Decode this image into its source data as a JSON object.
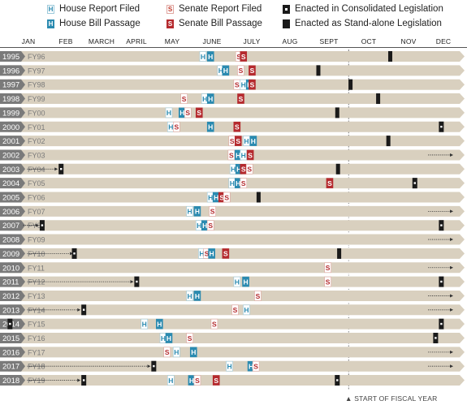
{
  "legend": {
    "house_report": "House Report Filed",
    "house_bill": "House Bill Passage",
    "senate_report": "Senate Report Filed",
    "senate_bill": "Senate Bill Passage",
    "consolidated": "Enacted in Consolidated Legislation",
    "standalone": "Enacted as Stand-alone Legislation",
    "house_glyph": "H",
    "senate_glyph": "S"
  },
  "colors": {
    "row_bg": "#d9d0bf",
    "house": "#2a8ab0",
    "senate": "#b52a2e",
    "black": "#1a1a1a",
    "year_tab": "#7a7a7a"
  },
  "months": [
    "JAN",
    "FEB",
    "MARCH",
    "APRIL",
    "MAY",
    "JUNE",
    "JULY",
    "AUG",
    "SEPT",
    "OCT",
    "NOV",
    "DEC"
  ],
  "footnote": "START OF FISCAL YEAR",
  "chart_data": {
    "type": "timeline",
    "rows": [
      {
        "year": "1995",
        "fy": "FY96",
        "strike": false,
        "events": [
          {
            "t": "HR",
            "m": 6.15
          },
          {
            "t": "HB",
            "m": 6.35
          },
          {
            "t": "SR",
            "m": 7.1
          },
          {
            "t": "SB",
            "m": 7.22
          },
          {
            "t": "EA",
            "m": 11.1
          }
        ]
      },
      {
        "year": "1996",
        "fy": "FY97",
        "strike": false,
        "events": [
          {
            "t": "HR",
            "m": 6.62
          },
          {
            "t": "HB",
            "m": 6.75
          },
          {
            "t": "SR",
            "m": 7.15
          },
          {
            "t": "SB",
            "m": 7.45
          },
          {
            "t": "EA",
            "m": 9.2
          }
        ]
      },
      {
        "year": "1997",
        "fy": "FY98",
        "strike": false,
        "events": [
          {
            "t": "SR",
            "m": 7.05
          },
          {
            "t": "HR",
            "m": 7.22
          },
          {
            "t": "HB",
            "m": 7.38
          },
          {
            "t": "SB",
            "m": 7.45
          },
          {
            "t": "EA",
            "m": 10.05
          }
        ]
      },
      {
        "year": "1998",
        "fy": "FY99",
        "strike": false,
        "events": [
          {
            "t": "SR",
            "m": 5.65
          },
          {
            "t": "HR",
            "m": 6.2
          },
          {
            "t": "HB",
            "m": 6.35
          },
          {
            "t": "SB",
            "m": 7.15
          },
          {
            "t": "EA",
            "m": 10.78
          }
        ]
      },
      {
        "year": "1999",
        "fy": "FY00",
        "strike": false,
        "events": [
          {
            "t": "HR",
            "m": 5.25
          },
          {
            "t": "HB",
            "m": 5.6
          },
          {
            "t": "SR",
            "m": 5.75
          },
          {
            "t": "SB",
            "m": 6.05
          },
          {
            "t": "EA",
            "m": 9.7
          }
        ]
      },
      {
        "year": "2000",
        "fy": "FY01",
        "strike": false,
        "events": [
          {
            "t": "HR",
            "m": 5.3
          },
          {
            "t": "SR",
            "m": 5.45
          },
          {
            "t": "HB",
            "m": 6.35
          },
          {
            "t": "SB",
            "m": 7.05
          },
          {
            "t": "EC",
            "m": 12.45
          }
        ]
      },
      {
        "year": "2001",
        "fy": "FY02",
        "strike": false,
        "events": [
          {
            "t": "SR",
            "m": 6.92
          },
          {
            "t": "SB",
            "m": 7.08
          },
          {
            "t": "HR",
            "m": 7.3
          },
          {
            "t": "HB",
            "m": 7.48
          },
          {
            "t": "EA",
            "m": 11.05
          }
        ]
      },
      {
        "year": "2002",
        "fy": "FY03",
        "strike": false,
        "events": [
          {
            "t": "SR",
            "m": 6.9
          },
          {
            "t": "HB",
            "m": 7.08
          },
          {
            "t": "HR",
            "m": 7.22
          },
          {
            "t": "SB",
            "m": 7.4
          },
          {
            "t": "AR",
            "from": 12.1,
            "to": 12.75
          }
        ]
      },
      {
        "year": "2003",
        "fy": "FY04",
        "strike": true,
        "events": [
          {
            "t": "AR",
            "from": 1.55,
            "to": 2.3
          },
          {
            "t": "EC",
            "m": 2.4
          },
          {
            "t": "HR",
            "m": 6.95
          },
          {
            "t": "HB",
            "m": 7.1
          },
          {
            "t": "SB",
            "m": 7.22
          },
          {
            "t": "SR",
            "m": 7.38
          },
          {
            "t": "EA",
            "m": 9.72
          }
        ]
      },
      {
        "year": "2004",
        "fy": "FY05",
        "strike": false,
        "events": [
          {
            "t": "HR",
            "m": 6.92
          },
          {
            "t": "HB",
            "m": 7.08
          },
          {
            "t": "SR",
            "m": 7.22
          },
          {
            "t": "SB",
            "m": 9.5
          },
          {
            "t": "EC",
            "m": 11.75
          }
        ]
      },
      {
        "year": "2005",
        "fy": "FY06",
        "strike": false,
        "events": [
          {
            "t": "HR",
            "m": 6.35
          },
          {
            "t": "HB",
            "m": 6.5
          },
          {
            "t": "SB",
            "m": 6.65
          },
          {
            "t": "SR",
            "m": 6.78
          },
          {
            "t": "EA",
            "m": 7.62
          }
        ]
      },
      {
        "year": "2006",
        "fy": "FY07",
        "strike": false,
        "events": [
          {
            "t": "HR",
            "m": 5.8
          },
          {
            "t": "HB",
            "m": 6.0
          },
          {
            "t": "SR",
            "m": 6.4
          },
          {
            "t": "AR",
            "from": 12.1,
            "to": 12.75
          }
        ]
      },
      {
        "year": "2007",
        "fy": "FY08",
        "strike": true,
        "events": [
          {
            "t": "AR",
            "from": 1.4,
            "to": 1.8
          },
          {
            "t": "EC",
            "m": 1.9
          },
          {
            "t": "HR",
            "m": 6.05
          },
          {
            "t": "HB",
            "m": 6.2
          },
          {
            "t": "SR",
            "m": 6.35
          },
          {
            "t": "EC",
            "m": 12.45
          }
        ]
      },
      {
        "year": "2008",
        "fy": "FY09",
        "strike": false,
        "events": [
          {
            "t": "AR",
            "from": 12.1,
            "to": 12.75
          }
        ]
      },
      {
        "year": "2009",
        "fy": "FY10",
        "strike": true,
        "events": [
          {
            "t": "AR",
            "from": 1.55,
            "to": 2.7
          },
          {
            "t": "EC",
            "m": 2.75
          },
          {
            "t": "HR",
            "m": 6.12
          },
          {
            "t": "SR",
            "m": 6.25
          },
          {
            "t": "HB",
            "m": 6.38
          },
          {
            "t": "SB",
            "m": 6.75
          },
          {
            "t": "EA",
            "m": 9.75
          }
        ]
      },
      {
        "year": "2010",
        "fy": "FY11",
        "strike": false,
        "events": [
          {
            "t": "SR",
            "m": 9.45
          },
          {
            "t": "AR",
            "from": 12.1,
            "to": 12.75
          }
        ]
      },
      {
        "year": "2011",
        "fy": "FY12",
        "strike": true,
        "events": [
          {
            "t": "AR",
            "from": 1.55,
            "to": 4.3
          },
          {
            "t": "EC",
            "m": 4.4
          },
          {
            "t": "HR",
            "m": 7.05
          },
          {
            "t": "HB",
            "m": 7.28
          },
          {
            "t": "SR",
            "m": 9.45
          },
          {
            "t": "EC",
            "m": 12.45
          }
        ]
      },
      {
        "year": "2012",
        "fy": "FY13",
        "strike": false,
        "events": [
          {
            "t": "HR",
            "m": 5.8
          },
          {
            "t": "HB",
            "m": 6.0
          },
          {
            "t": "SR",
            "m": 7.6
          },
          {
            "t": "AR",
            "from": 12.1,
            "to": 12.75
          }
        ]
      },
      {
        "year": "2013",
        "fy": "FY14",
        "strike": true,
        "events": [
          {
            "t": "AR",
            "from": 1.55,
            "to": 2.9
          },
          {
            "t": "EC",
            "m": 3.0
          },
          {
            "t": "SR",
            "m": 7.0
          },
          {
            "t": "HR",
            "m": 7.3
          },
          {
            "t": "AR",
            "from": 12.1,
            "to": 12.75
          }
        ]
      },
      {
        "year": "2014",
        "fy": "FY15",
        "strike": false,
        "events": [
          {
            "t": "EC",
            "m": 1.05
          },
          {
            "t": "HR",
            "m": 4.6
          },
          {
            "t": "HB",
            "m": 5.0
          },
          {
            "t": "SR",
            "m": 6.45
          },
          {
            "t": "EC",
            "m": 12.45
          }
        ]
      },
      {
        "year": "2015",
        "fy": "FY16",
        "strike": false,
        "events": [
          {
            "t": "HR",
            "m": 5.1
          },
          {
            "t": "HB",
            "m": 5.25
          },
          {
            "t": "SR",
            "m": 5.8
          },
          {
            "t": "EC",
            "m": 12.3
          }
        ]
      },
      {
        "year": "2016",
        "fy": "FY17",
        "strike": false,
        "events": [
          {
            "t": "SR",
            "m": 5.2
          },
          {
            "t": "HR",
            "m": 5.45
          },
          {
            "t": "HB",
            "m": 5.9
          },
          {
            "t": "AR",
            "from": 12.1,
            "to": 12.75
          }
        ]
      },
      {
        "year": "2017",
        "fy": "FY18",
        "strike": true,
        "events": [
          {
            "t": "AR",
            "from": 1.55,
            "to": 4.75
          },
          {
            "t": "EC",
            "m": 4.85
          },
          {
            "t": "HR",
            "m": 6.85
          },
          {
            "t": "HB",
            "m": 7.42
          },
          {
            "t": "SR",
            "m": 7.55
          },
          {
            "t": "AR",
            "from": 12.1,
            "to": 12.75
          }
        ]
      },
      {
        "year": "2018",
        "fy": "FY19",
        "strike": true,
        "events": [
          {
            "t": "AR",
            "from": 1.55,
            "to": 2.9
          },
          {
            "t": "EC",
            "m": 3.0
          },
          {
            "t": "HR",
            "m": 5.3
          },
          {
            "t": "HB",
            "m": 5.85
          },
          {
            "t": "SR",
            "m": 6.0
          },
          {
            "t": "SB",
            "m": 6.5
          },
          {
            "t": "EC",
            "m": 9.7
          }
        ]
      }
    ]
  }
}
